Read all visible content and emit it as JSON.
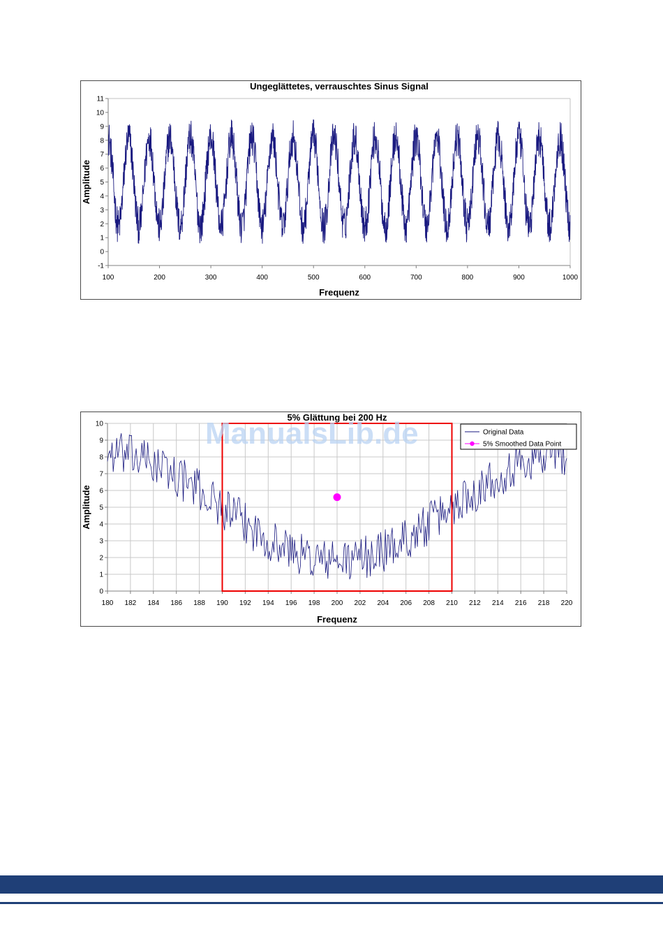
{
  "chart_data": [
    {
      "type": "line",
      "title": "Ungeglättetes, verrauschtes Sinus Signal",
      "xlabel": "Frequenz",
      "ylabel": "Amplitude",
      "xlim": [
        100,
        1000
      ],
      "ylim": [
        -1,
        11
      ],
      "x_ticks": [
        100,
        200,
        300,
        400,
        500,
        600,
        700,
        800,
        900,
        1000
      ],
      "y_ticks": [
        -1,
        0,
        1,
        2,
        3,
        4,
        5,
        6,
        7,
        8,
        9,
        10,
        11
      ],
      "grid": false,
      "series": [
        {
          "signal": {
            "offset": 5,
            "amplitude": 3.2,
            "period": 40,
            "noise": 2.6,
            "start": 100,
            "end": 1000,
            "step": 0.5
          },
          "color": "#1a1a80"
        }
      ]
    },
    {
      "type": "line",
      "title": "5% Glättung bei 200 Hz",
      "xlabel": "Frequenz",
      "ylabel": "Amplitude",
      "xlim": [
        180,
        220
      ],
      "ylim": [
        0,
        10
      ],
      "x_ticks": [
        180,
        182,
        184,
        186,
        188,
        190,
        192,
        194,
        196,
        198,
        200,
        202,
        204,
        206,
        208,
        210,
        212,
        214,
        216,
        218,
        220
      ],
      "y_ticks": [
        0,
        1,
        2,
        3,
        4,
        5,
        6,
        7,
        8,
        9,
        10
      ],
      "grid": true,
      "legend": "top-right",
      "series": [
        {
          "name": "Original Data",
          "signal": {
            "offset": 5,
            "amplitude": 3.2,
            "period": 40,
            "noise": 2.6,
            "start": 180,
            "end": 220,
            "step": 0.1
          },
          "color": "#1a1a80"
        },
        {
          "name": "5% Smoothed Data Point",
          "points": [
            [
              200,
              5.6
            ]
          ],
          "color": "#ff00ff"
        }
      ],
      "highlight_box": {
        "x": [
          190,
          210
        ],
        "y": [
          0,
          10
        ],
        "color": "#ee0000"
      }
    }
  ],
  "watermark": "ManualsLib.de",
  "colors": {
    "footer": "#1f3f77"
  }
}
